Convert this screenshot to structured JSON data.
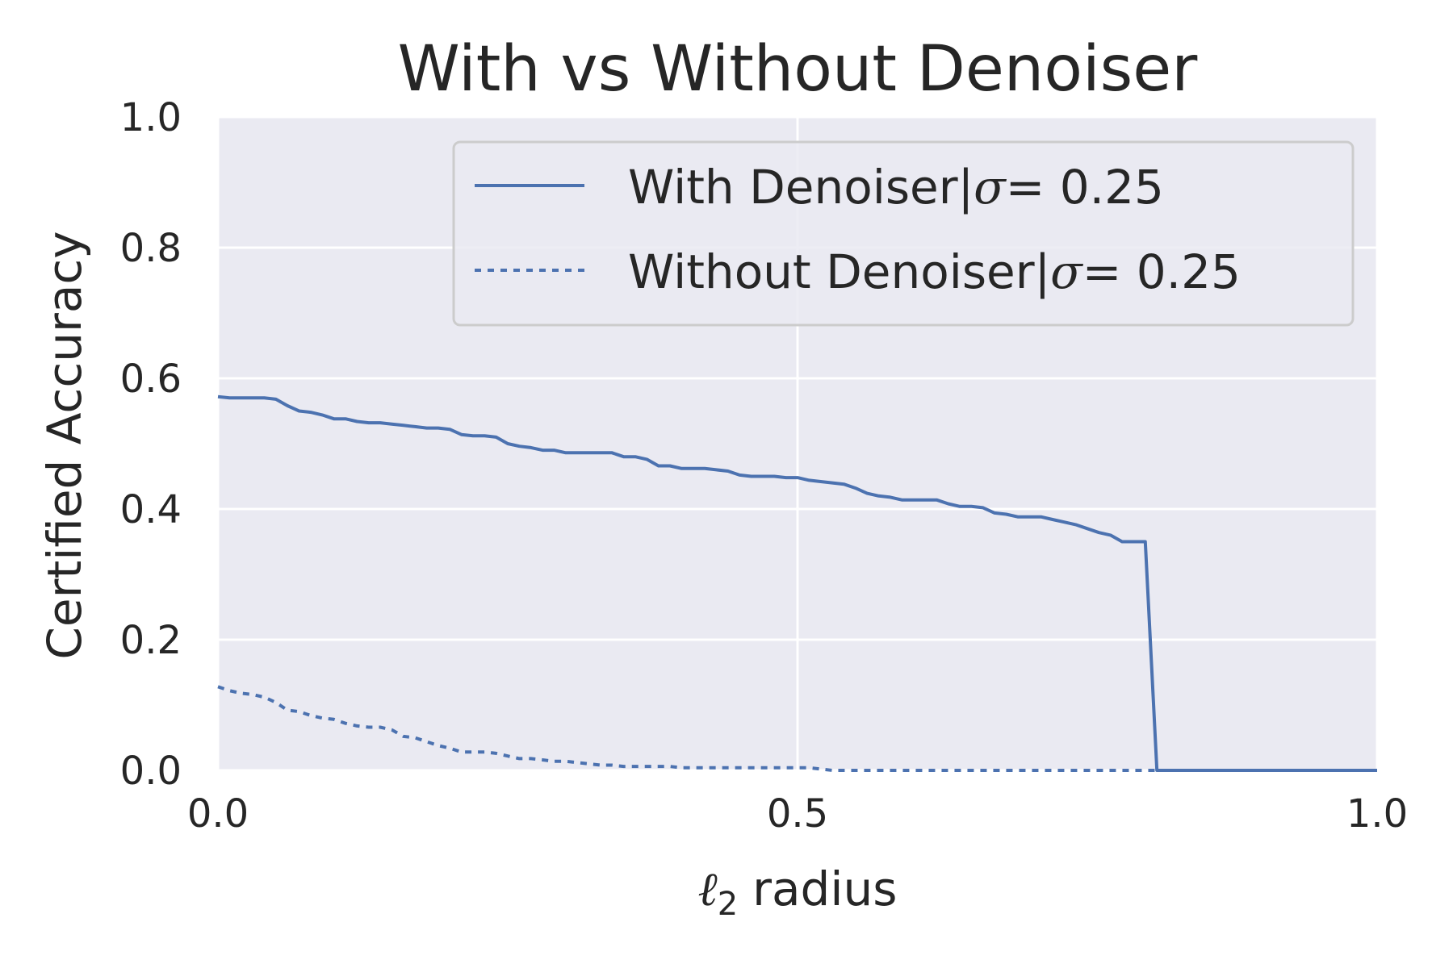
{
  "chart_data": {
    "type": "line",
    "title": "With vs Without Denoiser",
    "xlabel_symbol": "ℓ",
    "xlabel_subscript": "2",
    "xlabel_text": "radius",
    "ylabel": "Certified Accuracy",
    "xlim": [
      0.0,
      1.0
    ],
    "ylim": [
      0.0,
      1.0
    ],
    "xticks": [
      0.0,
      0.5,
      1.0
    ],
    "xtick_labels": [
      "0.0",
      "0.5",
      "1.0"
    ],
    "yticks": [
      0.0,
      0.2,
      0.4,
      0.6,
      0.8,
      1.0
    ],
    "ytick_labels": [
      "0.0",
      "0.2",
      "0.4",
      "0.6",
      "0.8",
      "1.0"
    ],
    "grid": true,
    "legend_position": "top-right",
    "legend_sigma_symbol": "σ",
    "legend_sigma_value": "= 0.25",
    "series": [
      {
        "name": "With Denoiser|",
        "style": "solid",
        "color": "#4c72b0",
        "x": [
          0.0,
          0.01,
          0.02,
          0.03,
          0.04,
          0.05,
          0.06,
          0.07,
          0.08,
          0.09,
          0.1,
          0.11,
          0.12,
          0.13,
          0.14,
          0.15,
          0.16,
          0.17,
          0.18,
          0.19,
          0.2,
          0.21,
          0.22,
          0.23,
          0.24,
          0.25,
          0.26,
          0.27,
          0.28,
          0.29,
          0.3,
          0.31,
          0.32,
          0.33,
          0.34,
          0.35,
          0.36,
          0.37,
          0.38,
          0.39,
          0.4,
          0.41,
          0.42,
          0.43,
          0.44,
          0.45,
          0.46,
          0.47,
          0.48,
          0.49,
          0.5,
          0.51,
          0.52,
          0.53,
          0.54,
          0.55,
          0.56,
          0.57,
          0.58,
          0.59,
          0.6,
          0.61,
          0.62,
          0.63,
          0.64,
          0.65,
          0.66,
          0.67,
          0.68,
          0.69,
          0.7,
          0.71,
          0.72,
          0.73,
          0.74,
          0.75,
          0.76,
          0.77,
          0.78,
          0.79,
          0.8,
          0.81,
          0.82,
          0.85,
          0.9,
          0.95,
          1.0
        ],
        "y": [
          0.572,
          0.57,
          0.57,
          0.57,
          0.57,
          0.568,
          0.558,
          0.55,
          0.548,
          0.544,
          0.538,
          0.538,
          0.534,
          0.532,
          0.532,
          0.53,
          0.528,
          0.526,
          0.524,
          0.524,
          0.522,
          0.514,
          0.512,
          0.512,
          0.51,
          0.5,
          0.496,
          0.494,
          0.49,
          0.49,
          0.486,
          0.486,
          0.486,
          0.486,
          0.486,
          0.48,
          0.48,
          0.476,
          0.466,
          0.466,
          0.462,
          0.462,
          0.462,
          0.46,
          0.458,
          0.452,
          0.45,
          0.45,
          0.45,
          0.448,
          0.448,
          0.444,
          0.442,
          0.44,
          0.438,
          0.432,
          0.424,
          0.42,
          0.418,
          0.414,
          0.414,
          0.414,
          0.414,
          0.408,
          0.404,
          0.404,
          0.402,
          0.394,
          0.392,
          0.388,
          0.388,
          0.388,
          0.384,
          0.38,
          0.376,
          0.37,
          0.364,
          0.36,
          0.35,
          0.35,
          0.35,
          0.0,
          0.0,
          0.0,
          0.0,
          0.0,
          0.0
        ]
      },
      {
        "name": "Without Denoiser|",
        "style": "dotted",
        "color": "#4c72b0",
        "x": [
          0.0,
          0.01,
          0.02,
          0.03,
          0.04,
          0.05,
          0.06,
          0.07,
          0.08,
          0.09,
          0.1,
          0.11,
          0.12,
          0.13,
          0.14,
          0.15,
          0.16,
          0.17,
          0.18,
          0.19,
          0.2,
          0.21,
          0.22,
          0.23,
          0.24,
          0.25,
          0.26,
          0.27,
          0.28,
          0.29,
          0.3,
          0.31,
          0.32,
          0.33,
          0.34,
          0.35,
          0.36,
          0.37,
          0.38,
          0.39,
          0.4,
          0.45,
          0.5,
          0.51,
          0.52,
          0.53,
          0.6,
          0.7,
          0.8,
          0.9,
          1.0
        ],
        "y": [
          0.128,
          0.122,
          0.118,
          0.116,
          0.112,
          0.104,
          0.092,
          0.09,
          0.084,
          0.08,
          0.078,
          0.072,
          0.068,
          0.066,
          0.066,
          0.062,
          0.052,
          0.05,
          0.044,
          0.038,
          0.034,
          0.028,
          0.028,
          0.028,
          0.026,
          0.022,
          0.018,
          0.018,
          0.016,
          0.014,
          0.014,
          0.012,
          0.01,
          0.008,
          0.008,
          0.006,
          0.006,
          0.006,
          0.006,
          0.006,
          0.004,
          0.004,
          0.004,
          0.004,
          0.002,
          0.0,
          0.0,
          0.0,
          0.0,
          0.0,
          0.0
        ]
      }
    ]
  }
}
